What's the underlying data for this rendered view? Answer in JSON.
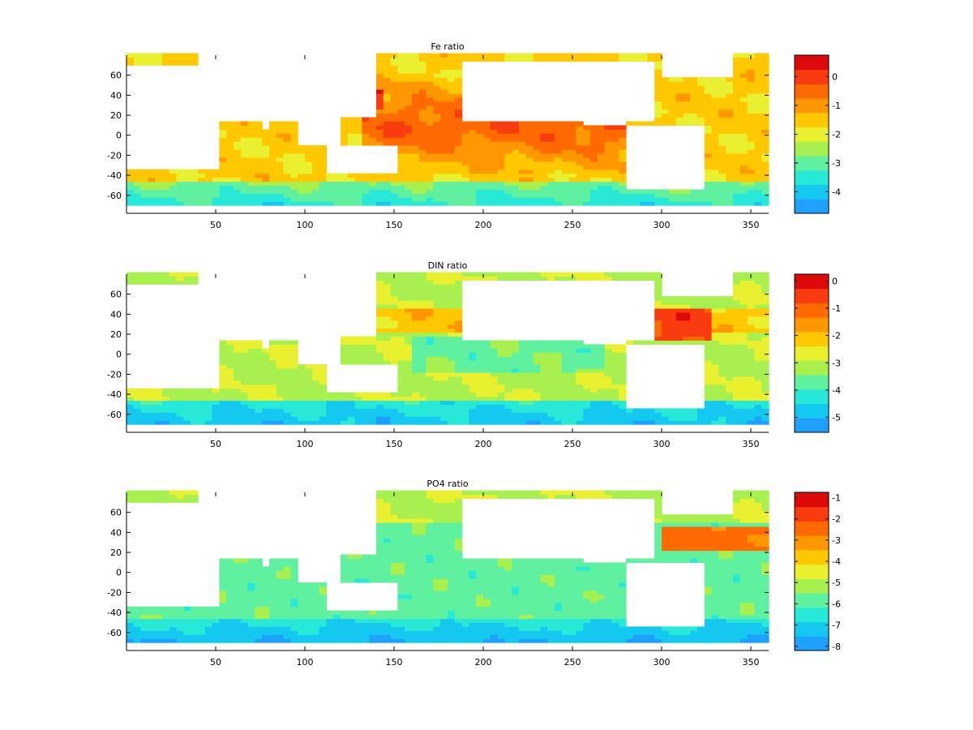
{
  "chart_data": [
    {
      "type": "heatmap",
      "title": "Fe ratio",
      "xlabel": "",
      "ylabel": "",
      "xlim": [
        0,
        360
      ],
      "ylim": [
        -78,
        80
      ],
      "x_ticks": [
        50,
        100,
        150,
        200,
        250,
        300,
        350
      ],
      "y_ticks": [
        60,
        40,
        20,
        0,
        -20,
        -40,
        -60
      ],
      "colorbar": {
        "min": -4.75,
        "max": 0.75,
        "levels": 11,
        "ticks": [
          0,
          -1,
          -2,
          -3,
          -4
        ]
      },
      "field_description_levels": {
        "ocean_mean": -1.6,
        "pacific_max": 0.4,
        "southern_ocean": -3.5
      }
    },
    {
      "type": "heatmap",
      "title": "DIN ratio",
      "xlabel": "",
      "ylabel": "",
      "xlim": [
        0,
        360
      ],
      "ylim": [
        -78,
        80
      ],
      "x_ticks": [
        50,
        100,
        150,
        200,
        250,
        300,
        350
      ],
      "y_ticks": [
        60,
        40,
        20,
        0,
        -20,
        -40,
        -60
      ],
      "colorbar": {
        "min": -5.55,
        "max": 0.25,
        "levels": 11,
        "ticks": [
          0,
          -1,
          -2,
          -3,
          -4,
          -5
        ]
      },
      "field_description_levels": {
        "ocean_mean": -3.0,
        "atlantic_max": -0.6,
        "southern_ocean": -4.8
      }
    },
    {
      "type": "heatmap",
      "title": "PO4 ratio",
      "xlabel": "",
      "ylabel": "",
      "xlim": [
        0,
        360
      ],
      "ylim": [
        -78,
        80
      ],
      "x_ticks": [
        50,
        100,
        150,
        200,
        250,
        300,
        350
      ],
      "y_ticks": [
        60,
        40,
        20,
        0,
        -20,
        -40,
        -60
      ],
      "colorbar": {
        "min": -8.2,
        "max": -0.75,
        "levels": 11,
        "ticks": [
          -1,
          -2,
          -3,
          -4,
          -5,
          -6,
          -7,
          -8
        ]
      },
      "field_description_levels": {
        "ocean_mean": -5.8,
        "atlantic_max": -2.5,
        "southern_ocean": -7.5
      }
    }
  ],
  "colormap": [
    "#1ea0ff",
    "#14c8f0",
    "#28e8d8",
    "#5ff0a0",
    "#a8f050",
    "#e8f030",
    "#ffc800",
    "#ff9800",
    "#ff6a00",
    "#f83c10",
    "#dc0a0a"
  ]
}
